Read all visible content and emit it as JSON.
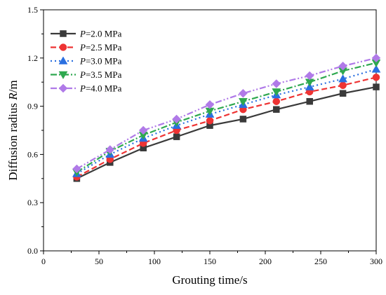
{
  "chart_data": {
    "type": "line",
    "title": "",
    "xlabel": "Grouting time/s",
    "ylabel": "Diffusion radius R/m",
    "xlim": [
      0,
      300
    ],
    "ylim": [
      0.0,
      1.5
    ],
    "x_ticks": [
      0,
      50,
      100,
      150,
      200,
      250,
      300
    ],
    "y_ticks": [
      0.0,
      0.3,
      0.6,
      0.9,
      1.2,
      1.5
    ],
    "x_tick_labels": [
      "0",
      "50",
      "100",
      "150",
      "200",
      "250",
      "300"
    ],
    "y_tick_labels": [
      "0.0",
      "0.3",
      "0.6",
      "0.9",
      "1.2",
      "1.5"
    ],
    "grid": false,
    "legend_position": "top-left",
    "x": [
      30,
      60,
      90,
      120,
      150,
      180,
      210,
      240,
      270,
      300
    ],
    "series": [
      {
        "name": "P=2.0 MPa",
        "label_italic": "P",
        "label_rest": "=2.0 MPa",
        "color": "#3a3a3a",
        "marker": "square",
        "dash": "solid",
        "values": [
          0.45,
          0.55,
          0.64,
          0.71,
          0.78,
          0.82,
          0.88,
          0.93,
          0.98,
          1.02
        ]
      },
      {
        "name": "P=2.5 MPa",
        "label_italic": "P",
        "label_rest": "=2.5 MPa",
        "color": "#ee3333",
        "marker": "circle",
        "dash": "dash",
        "values": [
          0.46,
          0.57,
          0.67,
          0.75,
          0.81,
          0.88,
          0.93,
          0.99,
          1.03,
          1.08
        ]
      },
      {
        "name": "P=3.0 MPa",
        "label_italic": "P",
        "label_rest": "=3.0 MPa",
        "color": "#2a6fe0",
        "marker": "triangle-up",
        "dash": "dot",
        "values": [
          0.48,
          0.6,
          0.7,
          0.78,
          0.85,
          0.91,
          0.97,
          1.02,
          1.07,
          1.13
        ]
      },
      {
        "name": "P=3.5 MPa",
        "label_italic": "P",
        "label_rest": "=3.5 MPa",
        "color": "#2ea84f",
        "marker": "triangle-down",
        "dash": "dashdot",
        "values": [
          0.49,
          0.62,
          0.72,
          0.8,
          0.87,
          0.93,
          0.99,
          1.05,
          1.12,
          1.17
        ]
      },
      {
        "name": "P=4.0 MPa",
        "label_italic": "P",
        "label_rest": "=4.0 MPa",
        "color": "#b07ae8",
        "marker": "diamond",
        "dash": "dashdotdot",
        "values": [
          0.51,
          0.63,
          0.75,
          0.82,
          0.91,
          0.98,
          1.04,
          1.09,
          1.15,
          1.2
        ]
      }
    ]
  }
}
